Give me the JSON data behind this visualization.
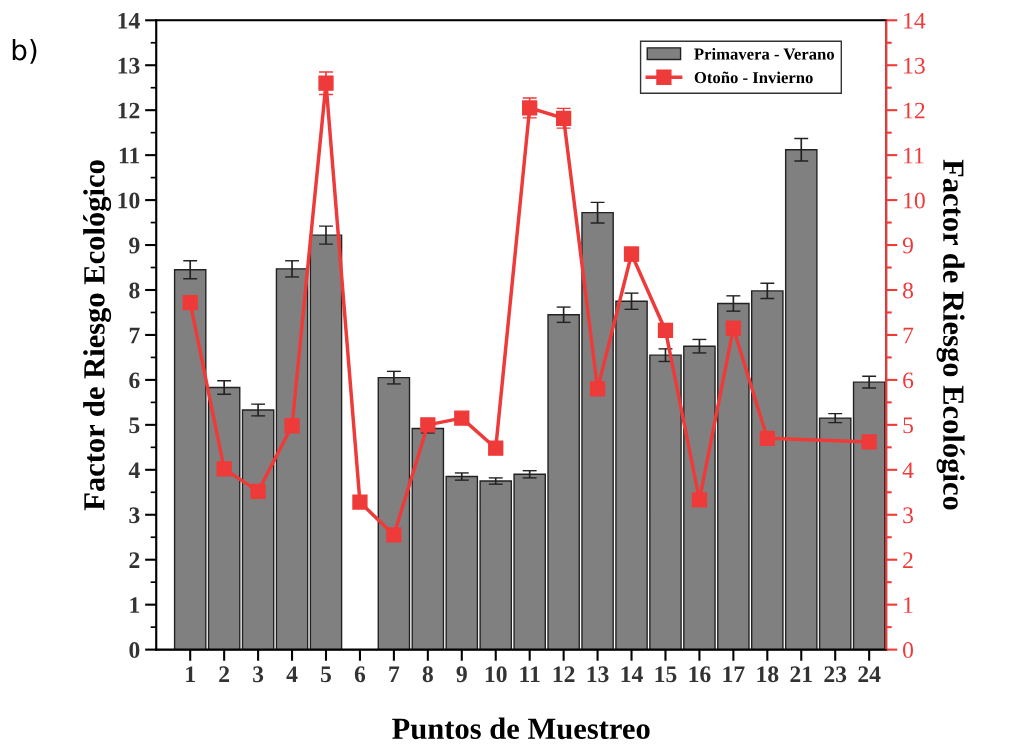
{
  "chart_data": {
    "type": "bar",
    "annotations": [
      "b)"
    ],
    "xlabel": "Puntos de Muestreo",
    "ylabel": "Factor de Riesgo Ecológico",
    "y2label": "Factor de Riesgo Ecológico",
    "categories": [
      "1",
      "2",
      "3",
      "4",
      "5",
      "6",
      "7",
      "8",
      "9",
      "10",
      "11",
      "12",
      "13",
      "14",
      "15",
      "16",
      "17",
      "18",
      "21",
      "23",
      "24"
    ],
    "series": [
      {
        "name": "Primavera - Verano",
        "color": "#808080",
        "values": [
          8.45,
          5.83,
          5.33,
          8.47,
          9.22,
          null,
          6.05,
          4.92,
          3.85,
          3.75,
          3.9,
          7.45,
          9.72,
          7.75,
          6.55,
          6.75,
          7.7,
          7.98,
          11.12,
          5.15,
          5.95
        ],
        "errors": [
          0.2,
          0.15,
          0.13,
          0.18,
          0.2,
          null,
          0.14,
          0.1,
          0.08,
          0.07,
          0.08,
          0.17,
          0.23,
          0.18,
          0.14,
          0.15,
          0.17,
          0.17,
          0.25,
          0.1,
          0.13
        ]
      },
      {
        "name": "Otoño - Invierno",
        "type": "line",
        "axis": "y2",
        "color": "#ef3a3a",
        "marker": "square",
        "values": [
          7.72,
          4.02,
          3.52,
          4.98,
          12.6,
          3.28,
          2.55,
          5.0,
          5.15,
          4.48,
          12.05,
          11.82,
          5.8,
          8.8,
          7.1,
          3.33,
          7.15,
          4.7,
          null,
          null,
          4.62
        ],
        "errors": [
          0.15,
          null,
          null,
          null,
          0.25,
          null,
          null,
          null,
          null,
          null,
          0.22,
          0.22,
          null,
          0.15,
          null,
          null,
          0.1,
          null,
          null,
          null,
          null
        ]
      }
    ],
    "ylim": [
      0,
      14
    ],
    "yticks": [
      0,
      1,
      2,
      3,
      4,
      5,
      6,
      7,
      8,
      9,
      10,
      11,
      12,
      13,
      14
    ],
    "y2lim": [
      0,
      14
    ],
    "y2ticks": [
      0,
      1,
      2,
      3,
      4,
      5,
      6,
      7,
      8,
      9,
      10,
      11,
      12,
      13,
      14
    ],
    "grid": false,
    "legend": "top right"
  }
}
